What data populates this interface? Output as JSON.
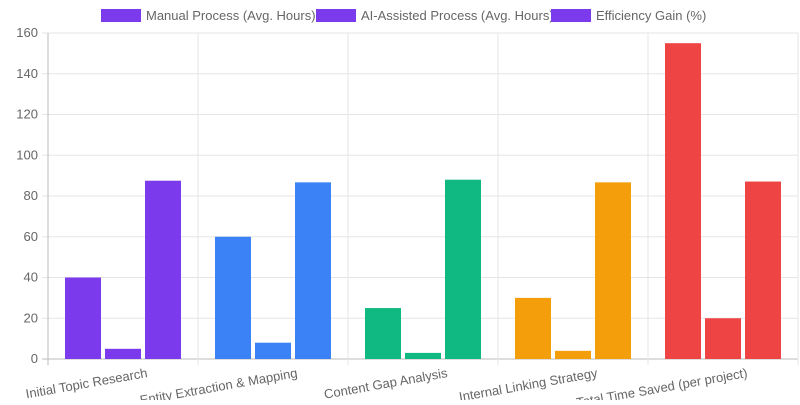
{
  "chart_data": {
    "type": "bar",
    "title": "",
    "xlabel": "",
    "ylabel": "",
    "categories": [
      "Initial Topic Research",
      "Entity Extraction & Mapping",
      "Content Gap Analysis",
      "Internal Linking Strategy",
      "Total Time Saved (per project)"
    ],
    "series": [
      {
        "name": "Manual Process (Avg. Hours)",
        "values": [
          40,
          60,
          25,
          30,
          155
        ]
      },
      {
        "name": "AI-Assisted Process (Avg. Hours)",
        "values": [
          5,
          8,
          3,
          4,
          20
        ]
      },
      {
        "name": "Efficiency Gain (%)",
        "values": [
          87.5,
          86.7,
          88,
          86.7,
          87.1
        ]
      }
    ],
    "category_colors": [
      "#7c3aed",
      "#3b82f6",
      "#10b981",
      "#f59e0b",
      "#ef4444"
    ],
    "legend_color": "#7c3aed",
    "ylim": [
      0,
      160
    ],
    "yticks": [
      0,
      20,
      40,
      60,
      80,
      100,
      120,
      140,
      160
    ],
    "grid": true,
    "legend_position": "top"
  }
}
